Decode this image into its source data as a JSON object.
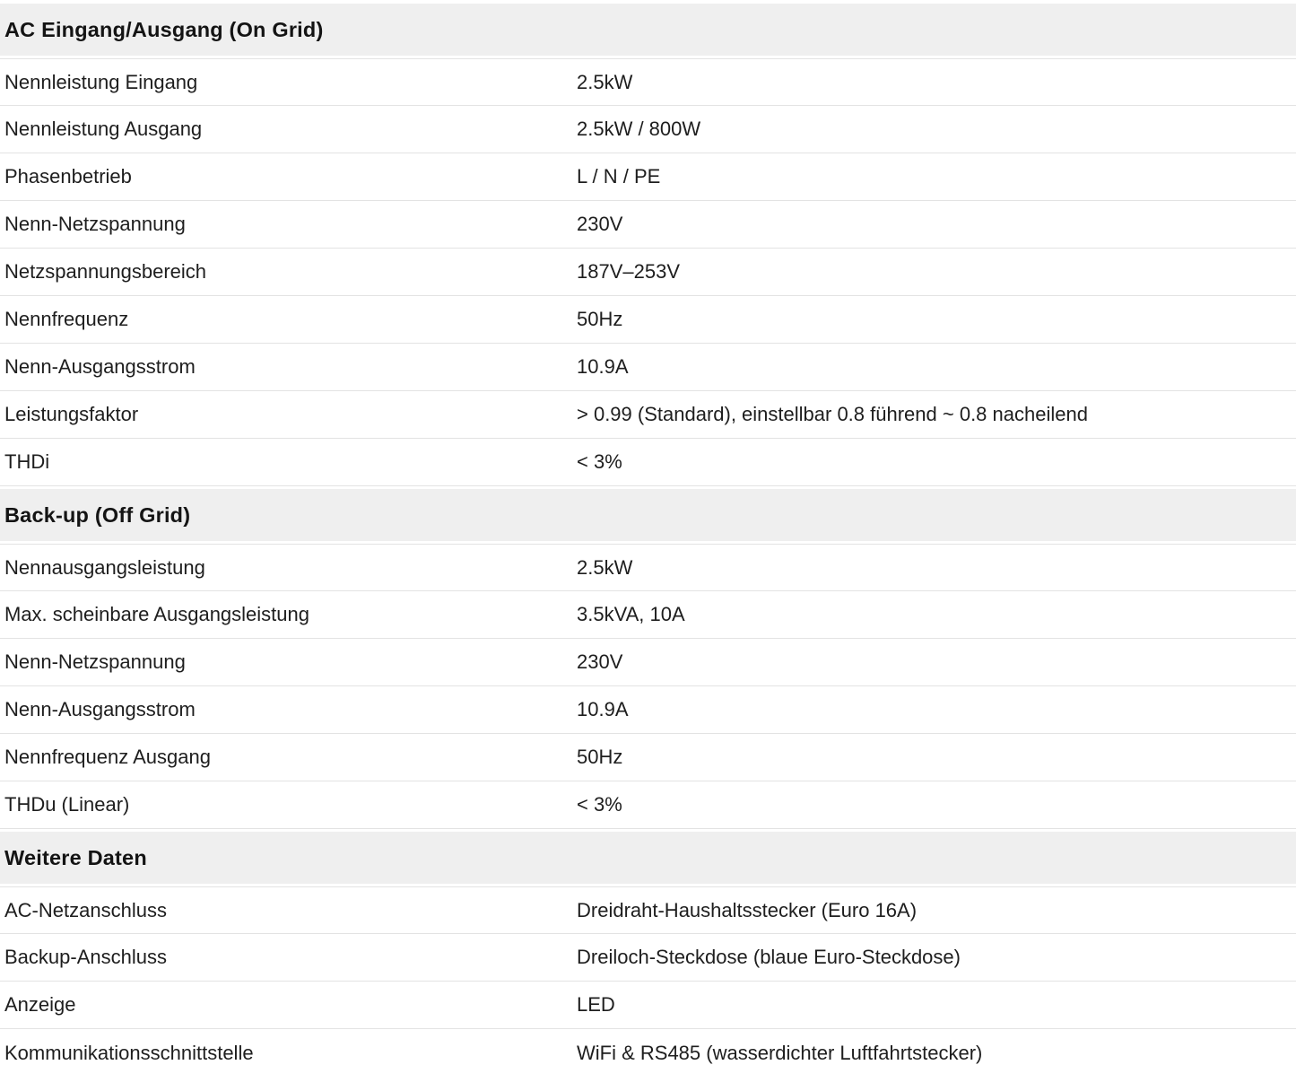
{
  "colors": {
    "section_header_bg": "#efefef",
    "divider": "#e3e3e3",
    "text": "#1e1e1e"
  },
  "sections": [
    {
      "title": "AC Eingang/Ausgang (On Grid)",
      "rows": [
        {
          "label": "Nennleistung Eingang",
          "value": "2.5kW"
        },
        {
          "label": "Nennleistung Ausgang",
          "value": "2.5kW / 800W"
        },
        {
          "label": "Phasenbetrieb",
          "value": "L / N / PE"
        },
        {
          "label": "Nenn-Netzspannung",
          "value": "230V"
        },
        {
          "label": "Netzspannungsbereich",
          "value": "187V–253V"
        },
        {
          "label": "Nennfrequenz",
          "value": "50Hz"
        },
        {
          "label": "Nenn-Ausgangsstrom",
          "value": "10.9A"
        },
        {
          "label": "Leistungsfaktor",
          "value": "> 0.99 (Standard), einstellbar 0.8 führend ~ 0.8 nacheilend"
        },
        {
          "label": "THDi",
          "value": "< 3%"
        }
      ]
    },
    {
      "title": "Back-up (Off Grid)",
      "rows": [
        {
          "label": "Nennausgangsleistung",
          "value": "2.5kW"
        },
        {
          "label": "Max. scheinbare Ausgangsleistung",
          "value": "3.5kVA, 10A"
        },
        {
          "label": "Nenn-Netzspannung",
          "value": "230V"
        },
        {
          "label": "Nenn-Ausgangsstrom",
          "value": "10.9A"
        },
        {
          "label": "Nennfrequenz Ausgang",
          "value": "50Hz"
        },
        {
          "label": "THDu (Linear)",
          "value": "< 3%"
        }
      ]
    },
    {
      "title": "Weitere Daten",
      "rows": [
        {
          "label": "AC-Netzanschluss",
          "value": "Dreidraht-Haushaltsstecker (Euro 16A)"
        },
        {
          "label": "Backup-Anschluss",
          "value": "Dreiloch-Steckdose (blaue Euro-Steckdose)"
        },
        {
          "label": "Anzeige",
          "value": "LED"
        },
        {
          "label": "Kommunikationsschnittstelle",
          "value": "WiFi & RS485 (wasserdichter Luftfahrtstecker)"
        }
      ]
    }
  ]
}
